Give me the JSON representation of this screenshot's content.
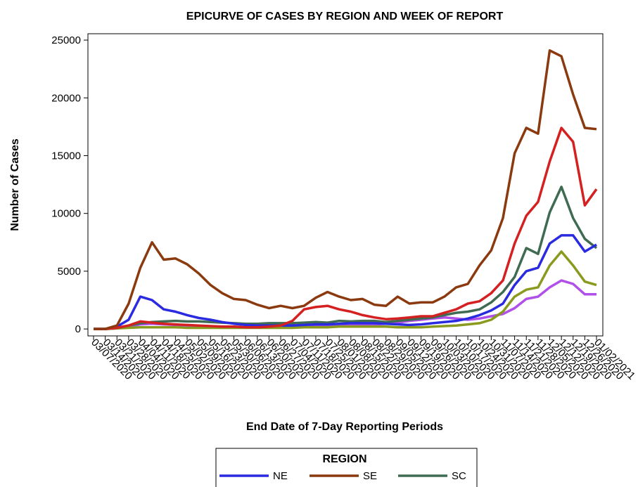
{
  "chart_data": {
    "type": "line",
    "title": "EPICURVE OF CASES BY REGION AND WEEK OF REPORT",
    "x_label": "End Date of 7-Day Reporting Periods",
    "y_label": "Number of Cases",
    "legend_title": "REGION",
    "categories": [
      "03/07/2020",
      "03/14/2020",
      "03/21/2020",
      "03/28/2020",
      "04/04/2020",
      "04/11/2020",
      "04/18/2020",
      "04/25/2020",
      "05/02/2020",
      "05/09/2020",
      "05/16/2020",
      "05/23/2020",
      "05/30/2020",
      "06/06/2020",
      "06/13/2020",
      "06/20/2020",
      "06/27/2020",
      "07/04/2020",
      "07/11/2020",
      "07/18/2020",
      "07/25/2020",
      "08/01/2020",
      "08/08/2020",
      "08/15/2020",
      "08/22/2020",
      "08/29/2020",
      "09/05/2020",
      "09/12/2020",
      "09/19/2020",
      "09/26/2020",
      "10/03/2020",
      "10/10/2020",
      "10/17/2020",
      "10/24/2020",
      "10/31/2020",
      "11/07/2020",
      "11/14/2020",
      "11/21/2020",
      "11/28/2020",
      "12/05/2020",
      "12/12/2020",
      "12/19/2020",
      "12/26/2020",
      "01/02/2021"
    ],
    "ylim": [
      -600,
      25550
    ],
    "yticks": [
      0,
      5000,
      10000,
      15000,
      20000,
      25000
    ],
    "series": [
      {
        "color": "#b050e8",
        "values": [
          0,
          0,
          50,
          200,
          400,
          450,
          400,
          350,
          300,
          250,
          200,
          150,
          150,
          150,
          150,
          150,
          150,
          150,
          150,
          200,
          200,
          250,
          300,
          350,
          400,
          450,
          550,
          700,
          800,
          900,
          1000,
          900,
          800,
          900,
          1100,
          1300,
          1800,
          2600,
          2800,
          3600,
          4200,
          3900,
          3000,
          3000
        ]
      },
      {
        "color": "#8a9a1e",
        "values": [
          0,
          0,
          50,
          100,
          150,
          150,
          150,
          150,
          100,
          100,
          100,
          100,
          100,
          100,
          100,
          100,
          100,
          100,
          150,
          150,
          150,
          200,
          200,
          200,
          200,
          200,
          150,
          150,
          150,
          200,
          250,
          300,
          400,
          500,
          800,
          1500,
          2800,
          3400,
          3600,
          5500,
          6700,
          5500,
          4100,
          3800
        ]
      },
      {
        "name": "SC",
        "color": "#3f6b52",
        "values": [
          0,
          0,
          100,
          300,
          500,
          600,
          650,
          700,
          650,
          650,
          600,
          550,
          500,
          450,
          450,
          500,
          500,
          500,
          550,
          600,
          550,
          700,
          650,
          700,
          700,
          600,
          700,
          800,
          900,
          1000,
          1200,
          1400,
          1500,
          1700,
          2300,
          3200,
          4500,
          7000,
          6500,
          10100,
          12300,
          9600,
          7800,
          7000
        ]
      },
      {
        "name": "NE",
        "color": "#2a2ae0",
        "values": [
          0,
          0,
          200,
          800,
          2800,
          2500,
          1700,
          1500,
          1200,
          950,
          800,
          600,
          450,
          350,
          300,
          300,
          300,
          300,
          350,
          400,
          400,
          450,
          500,
          500,
          500,
          450,
          400,
          350,
          400,
          500,
          600,
          700,
          900,
          1200,
          1600,
          2200,
          3800,
          5000,
          5300,
          7400,
          8100,
          8100,
          6700,
          7300
        ]
      },
      {
        "color": "#d42020",
        "values": [
          0,
          0,
          100,
          300,
          650,
          550,
          450,
          400,
          350,
          300,
          250,
          200,
          200,
          150,
          150,
          200,
          300,
          700,
          1700,
          1900,
          2000,
          1700,
          1500,
          1200,
          1000,
          850,
          900,
          1000,
          1100,
          1100,
          1400,
          1700,
          2200,
          2400,
          3100,
          4200,
          7400,
          9800,
          11000,
          14500,
          17400,
          16200,
          10700,
          12100
        ]
      },
      {
        "name": "SE",
        "color": "#8b3a0f",
        "values": [
          0,
          0,
          300,
          2200,
          5300,
          7500,
          6000,
          6100,
          5600,
          4800,
          3800,
          3100,
          2600,
          2500,
          2100,
          1800,
          2000,
          1800,
          2000,
          2700,
          3200,
          2800,
          2500,
          2600,
          2100,
          2000,
          2800,
          2200,
          2300,
          2300,
          2800,
          3600,
          3900,
          5500,
          6800,
          9600,
          15200,
          17400,
          16900,
          24100,
          23600,
          20300,
          17400,
          17300
        ]
      }
    ],
    "legend_order": [
      3,
      5,
      2
    ]
  }
}
